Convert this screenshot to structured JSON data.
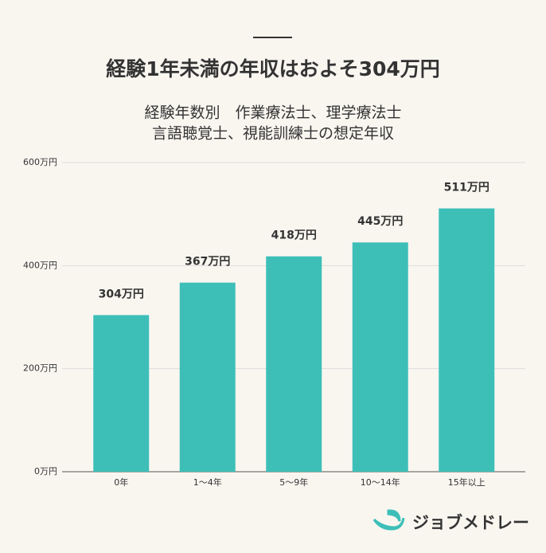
{
  "chart_data": {
    "type": "bar",
    "title": "経験1年未満の年収はおよそ304万円",
    "subtitle": [
      "経験年数別　作業療法士、理学療法士",
      "言語聴覚士、視能訓練士の想定年収"
    ],
    "categories": [
      "0年",
      "1〜4年",
      "5〜9年",
      "10〜14年",
      "15年以上"
    ],
    "values": [
      304,
      367,
      418,
      445,
      511
    ],
    "value_labels": [
      "304万円",
      "367万円",
      "418万円",
      "445万円",
      "511万円"
    ],
    "color": "#3dbfb8",
    "ylim": [
      0,
      600
    ],
    "yticks": [
      {
        "value": 0,
        "label": "0万円"
      },
      {
        "value": 200,
        "label": "200万円"
      },
      {
        "value": 400,
        "label": "400万円"
      },
      {
        "value": 600,
        "label": "600万円"
      }
    ],
    "grid": true
  },
  "logo": "ジョブメドレー"
}
